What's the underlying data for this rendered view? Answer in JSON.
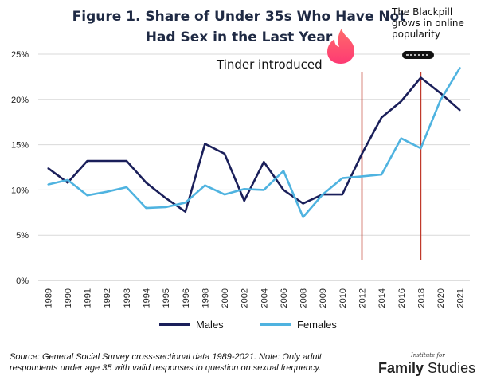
{
  "figure": {
    "title_line1": "Figure 1. Share of Under 35s Who Have Not",
    "title_line2": "Had Sex in the Last Year",
    "annotation_tinder": "Tinder introduced",
    "annotation_blackpill_line1": "The Blackpill",
    "annotation_blackpill_line2": "grows in online",
    "annotation_blackpill_line3": "popularity",
    "source_line1": "Source: General Social Survey cross-sectional data 1989-2021. Note: Only adult",
    "source_line2": "respondents under age 35 with valid responses to question on sexual frequency.",
    "logo_small": "Institute for",
    "logo_family": "Family",
    "logo_studies": "Studies"
  },
  "chart_data": {
    "type": "line",
    "categories": [
      "1989",
      "1990",
      "1991",
      "1992",
      "1993",
      "1994",
      "1995",
      "1996",
      "1998",
      "2000",
      "2002",
      "2004",
      "2006",
      "2008",
      "2009",
      "2010",
      "2012",
      "2014",
      "2016",
      "2018",
      "2020",
      "2021"
    ],
    "ylim": [
      0,
      25
    ],
    "yticks": [
      "0%",
      "5%",
      "10%",
      "15%",
      "20%",
      "25%"
    ],
    "grid": "horizontal",
    "legend_position": "bottom",
    "series": [
      {
        "name": "Males",
        "color": "#1a1f5a",
        "values": [
          12.4,
          10.8,
          13.2,
          13.2,
          13.2,
          10.8,
          9.1,
          7.6,
          15.1,
          14.0,
          8.8,
          13.1,
          10.0,
          8.5,
          9.5,
          9.5,
          14.0,
          18.0,
          19.8,
          22.4,
          20.7,
          18.8
        ]
      },
      {
        "name": "Females",
        "color": "#4fb3e0",
        "values": [
          10.6,
          11.1,
          9.4,
          9.8,
          10.3,
          8.0,
          8.1,
          8.6,
          10.5,
          9.5,
          10.1,
          10.0,
          12.1,
          7.0,
          9.5,
          11.3,
          11.5,
          11.7,
          15.7,
          14.6,
          19.9,
          23.5
        ]
      }
    ],
    "markers": [
      {
        "category": "2012",
        "color": "#c0392b"
      },
      {
        "category": "2018",
        "color": "#c0392b"
      }
    ]
  }
}
